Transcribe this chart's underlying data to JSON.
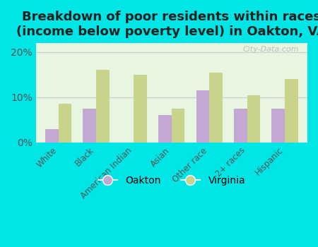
{
  "title": "Breakdown of poor residents within races\n(income below poverty level) in Oakton, VA",
  "categories": [
    "White",
    "Black",
    "American Indian",
    "Asian",
    "Other race",
    "2+ races",
    "Hispanic"
  ],
  "oakton_values": [
    3.0,
    7.5,
    0.0,
    6.0,
    11.5,
    7.5,
    7.5
  ],
  "virginia_values": [
    8.5,
    16.0,
    15.0,
    7.5,
    15.5,
    10.5,
    14.0
  ],
  "oakton_color": "#c4a8d4",
  "virginia_color": "#c8d48a",
  "background_outer": "#00e5e5",
  "background_inner": "#e8f5e0",
  "ylim": [
    0,
    22
  ],
  "yticks": [
    0,
    10,
    20
  ],
  "yticklabels": [
    "0%",
    "10%",
    "20%"
  ],
  "bar_width": 0.35,
  "title_fontsize": 13,
  "legend_labels": [
    "Oakton",
    "Virginia"
  ],
  "watermark": "City-Data.com"
}
